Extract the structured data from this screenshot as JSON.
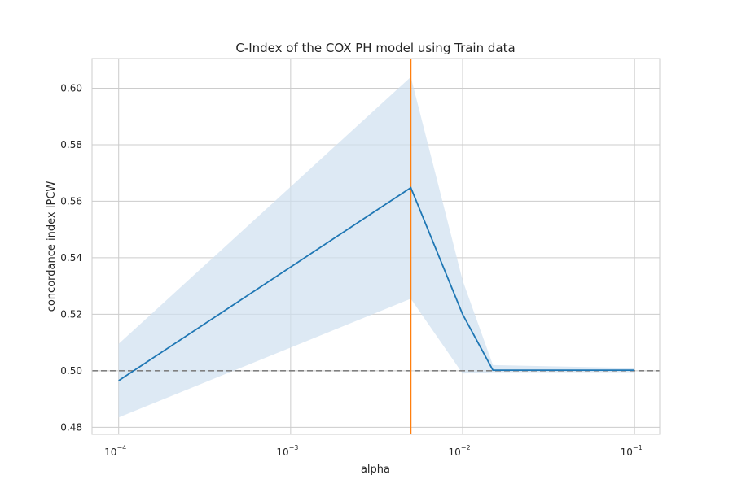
{
  "chart_data": {
    "type": "line",
    "title": "C-Index of the COX PH model using Train data",
    "xlabel": "alpha",
    "ylabel": "concordance index IPCW",
    "xscale": "log",
    "xlim": [
      7e-05,
      0.14
    ],
    "ylim": [
      0.4775,
      0.6105
    ],
    "x_ticks": [
      0.0001,
      0.001,
      0.01,
      0.1
    ],
    "x_tick_labels": [
      {
        "base": "10",
        "exp": "−4"
      },
      {
        "base": "10",
        "exp": "−3"
      },
      {
        "base": "10",
        "exp": "−2"
      },
      {
        "base": "10",
        "exp": "−1"
      }
    ],
    "y_ticks": [
      0.48,
      0.5,
      0.52,
      0.54,
      0.56,
      0.58,
      0.6
    ],
    "y_tick_labels": [
      "0.48",
      "0.50",
      "0.52",
      "0.54",
      "0.56",
      "0.58",
      "0.60"
    ],
    "grid": true,
    "series": [
      {
        "x": [
          0.0001,
          0.005,
          0.01,
          0.015,
          0.1
        ],
        "y": [
          0.4965,
          0.5648,
          0.52,
          0.5002,
          0.5002
        ],
        "upper": [
          0.5095,
          0.604,
          0.532,
          0.502,
          0.501
        ],
        "lower": [
          0.4835,
          0.5255,
          0.499,
          0.4995,
          0.4995
        ],
        "color": "#1f77b4",
        "band_color": "#cfe0f0"
      }
    ],
    "reference_lines": [
      {
        "orientation": "horizontal",
        "value": 0.5,
        "style": "dashed",
        "color": "#808080"
      },
      {
        "orientation": "vertical",
        "value": 0.005,
        "style": "solid",
        "color": "#ff7f0e"
      }
    ]
  }
}
